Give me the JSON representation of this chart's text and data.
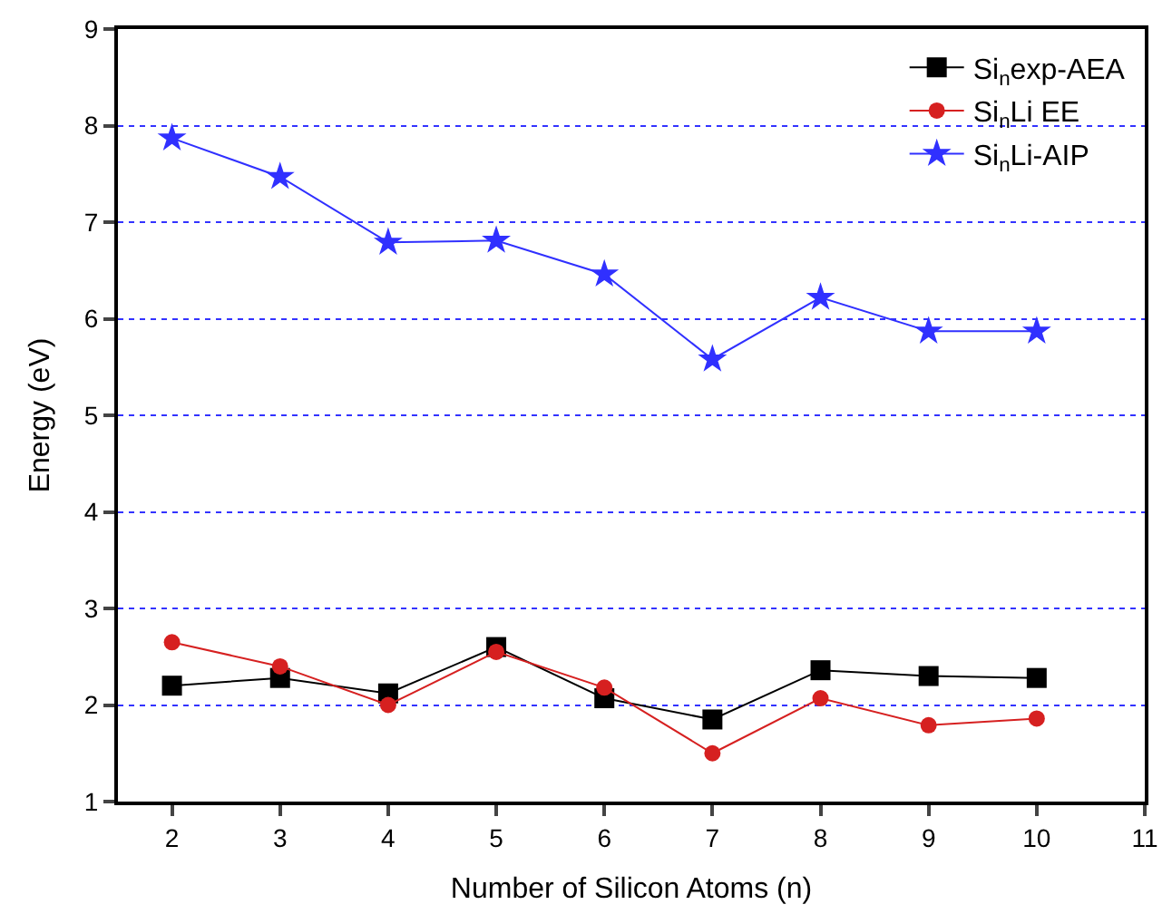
{
  "chart_data": {
    "type": "line",
    "xlabel": "Number of Silicon Atoms (n)",
    "ylabel": "Energy (eV)",
    "x": [
      2,
      3,
      4,
      5,
      6,
      7,
      8,
      9,
      10
    ],
    "series": [
      {
        "name": "Si$_{n}$exp-AEA",
        "color": "#000000",
        "marker": "square",
        "values": [
          2.2,
          2.28,
          2.12,
          2.6,
          2.07,
          1.85,
          2.36,
          2.3,
          2.28
        ]
      },
      {
        "name": "Si$_{n}$Li EE",
        "color": "#d62020",
        "marker": "circle",
        "values": [
          2.65,
          2.4,
          2.0,
          2.55,
          2.18,
          1.5,
          2.07,
          1.79,
          1.86
        ]
      },
      {
        "name": "Si$_{n}$Li-AIP",
        "color": "#3030ff",
        "marker": "star",
        "values": [
          7.87,
          7.47,
          6.79,
          6.81,
          6.46,
          5.58,
          6.22,
          5.87,
          5.87
        ]
      }
    ],
    "xlim": [
      1.5,
      11
    ],
    "xticks": [
      2,
      3,
      4,
      5,
      6,
      7,
      8,
      9,
      10,
      11
    ],
    "ylim": [
      1,
      9
    ],
    "yticks": [
      1,
      2,
      3,
      4,
      5,
      6,
      7,
      8,
      9
    ],
    "grid": "y",
    "legend": "top right",
    "line_style": "solid"
  }
}
